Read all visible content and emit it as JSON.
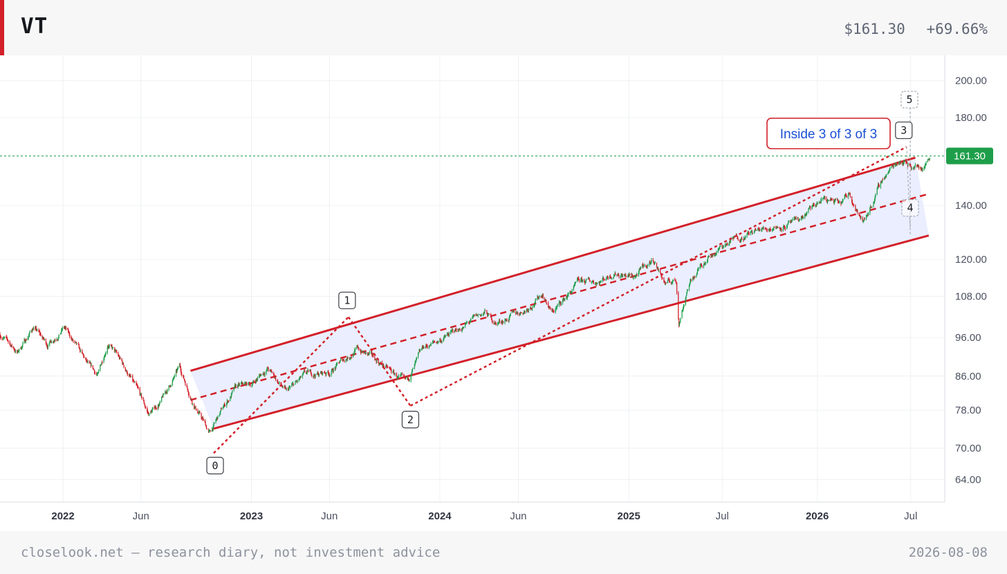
{
  "header": {
    "ticker": "VT",
    "price": "$161.30",
    "change": "+69.66%"
  },
  "footer": {
    "note": "closelook.net — research diary, not investment advice",
    "date": "2026-08-08"
  },
  "colors": {
    "accent": "#d32029",
    "up": "#1e9e4a",
    "down": "#d32029",
    "channel": "#d32029",
    "channel_fill": "#e6ebff",
    "price_line": "#1e9e4a",
    "annotation_text": "#1a4fd6"
  },
  "chart_data": {
    "type": "candlestick",
    "y_scale": "log",
    "ylim": [
      60,
      215
    ],
    "xlim": [
      "2021-09-01",
      "2026-09-05"
    ],
    "y_ticks": [
      64,
      70,
      78,
      86,
      96,
      108,
      120,
      140,
      180,
      200
    ],
    "y_tick_labels": [
      "64.00",
      "70.00",
      "78.00",
      "86.00",
      "96.00",
      "108.00",
      "120.00",
      "140.00",
      "180.00",
      "200.00"
    ],
    "x_ticks": [
      {
        "date": "2022-01-01",
        "label": "2022",
        "major": true
      },
      {
        "date": "2022-06-01",
        "label": "Jun",
        "major": false
      },
      {
        "date": "2023-01-01",
        "label": "2023",
        "major": true
      },
      {
        "date": "2023-06-01",
        "label": "Jun",
        "major": false
      },
      {
        "date": "2024-01-01",
        "label": "2024",
        "major": true
      },
      {
        "date": "2024-06-01",
        "label": "Jun",
        "major": false
      },
      {
        "date": "2025-01-01",
        "label": "2025",
        "major": true
      },
      {
        "date": "2025-07-01",
        "label": "Jul",
        "major": false
      },
      {
        "date": "2026-01-01",
        "label": "2026",
        "major": true
      },
      {
        "date": "2026-07-01",
        "label": "Jul",
        "major": false
      }
    ],
    "last_price": 161.3,
    "last_price_label": "161.30",
    "price_path": [
      [
        "2021-09-01",
        97
      ],
      [
        "2021-10-05",
        92
      ],
      [
        "2021-11-05",
        99
      ],
      [
        "2021-12-01",
        94
      ],
      [
        "2022-01-03",
        99
      ],
      [
        "2022-02-20",
        88
      ],
      [
        "2022-03-10",
        86
      ],
      [
        "2022-03-29",
        95
      ],
      [
        "2022-05-10",
        86
      ],
      [
        "2022-06-16",
        77
      ],
      [
        "2022-07-10",
        80
      ],
      [
        "2022-08-15",
        88
      ],
      [
        "2022-09-10",
        80
      ],
      [
        "2022-10-12",
        73
      ],
      [
        "2022-11-10",
        79
      ],
      [
        "2022-12-01",
        83
      ],
      [
        "2023-01-01",
        84
      ],
      [
        "2023-02-01",
        88
      ],
      [
        "2023-03-10",
        82
      ],
      [
        "2023-04-15",
        86
      ],
      [
        "2023-06-01",
        87
      ],
      [
        "2023-07-25",
        93
      ],
      [
        "2023-09-10",
        89
      ],
      [
        "2023-10-27",
        84
      ],
      [
        "2023-12-01",
        93
      ],
      [
        "2024-01-10",
        96
      ],
      [
        "2024-02-15",
        99
      ],
      [
        "2024-03-28",
        103
      ],
      [
        "2024-04-19",
        100
      ],
      [
        "2024-06-15",
        104
      ],
      [
        "2024-07-18",
        109
      ],
      [
        "2024-08-05",
        103
      ],
      [
        "2024-09-25",
        112
      ],
      [
        "2024-11-05",
        113
      ],
      [
        "2024-12-05",
        116
      ],
      [
        "2025-01-10",
        114
      ],
      [
        "2025-02-18",
        120
      ],
      [
        "2025-03-13",
        112
      ],
      [
        "2025-04-03",
        113
      ],
      [
        "2025-04-08",
        100
      ],
      [
        "2025-04-25",
        111
      ],
      [
        "2025-06-01",
        121
      ],
      [
        "2025-08-01",
        128
      ],
      [
        "2025-10-10",
        132
      ],
      [
        "2025-11-20",
        133
      ],
      [
        "2026-01-15",
        143
      ],
      [
        "2026-02-15",
        140
      ],
      [
        "2026-03-05",
        145
      ],
      [
        "2026-03-30",
        133
      ],
      [
        "2026-05-10",
        152
      ],
      [
        "2026-06-10",
        160
      ],
      [
        "2026-07-05",
        157
      ],
      [
        "2026-07-25",
        156
      ],
      [
        "2026-08-07",
        161.3
      ]
    ],
    "channel": {
      "upper": [
        [
          "2022-09-05",
          87.3
        ],
        [
          "2026-07-10",
          160.5
        ]
      ],
      "middle": [
        [
          "2022-09-05",
          80.3
        ],
        [
          "2026-08-01",
          144.5
        ]
      ],
      "lower": [
        [
          "2022-10-20",
          74.0
        ],
        [
          "2026-08-05",
          128.5
        ]
      ]
    },
    "waves": [
      {
        "label": "0",
        "date": "2022-10-20",
        "price": 69.0
      },
      {
        "label": "1",
        "date": "2023-07-08",
        "price": 101.8
      },
      {
        "label": "2",
        "date": "2023-11-05",
        "price": 79.0
      },
      {
        "label": "3",
        "date": "2026-06-23",
        "price": 165.5
      },
      {
        "label": "4",
        "date": "2026-06-30",
        "price": 129.0
      },
      {
        "label": "5",
        "date": "2026-06-30",
        "price": 185.0
      }
    ],
    "annotation": "Inside 3 of 3 of 3"
  }
}
